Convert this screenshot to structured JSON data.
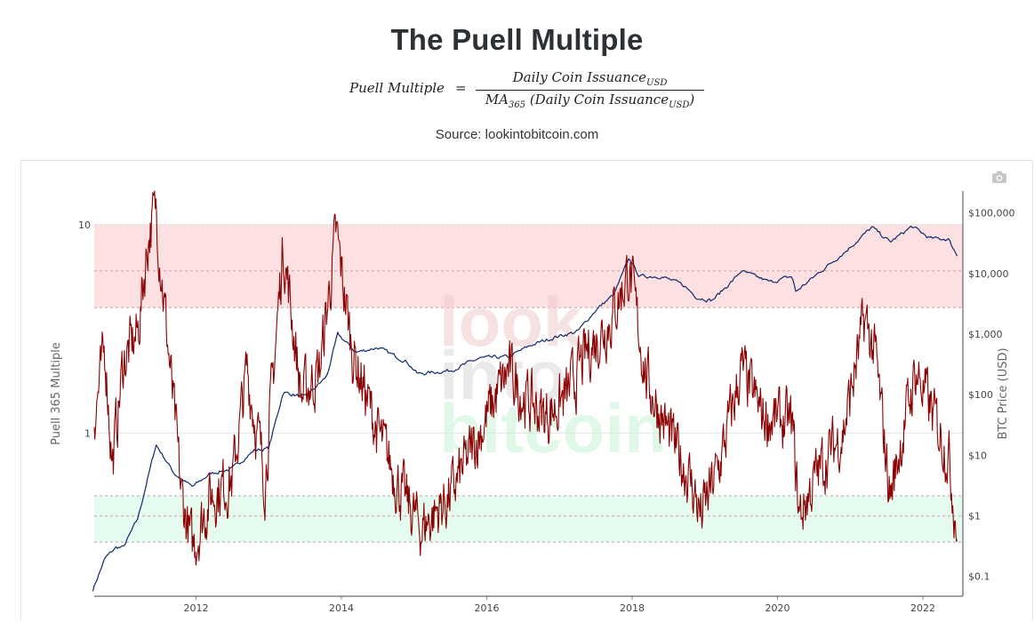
{
  "page": {
    "title": "The Puell Multiple",
    "formula": {
      "lhs": "Puell Multiple",
      "equals": "=",
      "numerator": "Daily Coin Issuance",
      "numerator_sub": "USD",
      "denominator_prefix": "MA",
      "denominator_prefix_sub": "365",
      "denominator_body": "(Daily Coin Issuance",
      "denominator_sub": "USD",
      "denominator_close": ")"
    },
    "source": "Source: lookintobitcoin.com",
    "watermark": [
      "look",
      "into",
      "bitcoin"
    ],
    "camera_icon": "camera-icon"
  },
  "chart_data": {
    "type": "line",
    "x_ticks": [
      "2012",
      "2014",
      "2016",
      "2018",
      "2020",
      "2022"
    ],
    "xlim": [
      2010.6,
      2022.55
    ],
    "left_axis": {
      "title": "Puell 365 Multiple",
      "scale": "log",
      "ticks": [
        "1",
        "10"
      ],
      "ylim": [
        0.165,
        14.5
      ]
    },
    "right_axis": {
      "title": "BTC Price (USD)",
      "scale": "log",
      "ticks": [
        "$0.1",
        "$1",
        "$10",
        "$100",
        "$1,000",
        "$10,000",
        "$100,000"
      ],
      "ylim": [
        0.047,
        230000
      ]
    },
    "bands": [
      {
        "name": "overvalued",
        "color": "#fde0e2",
        "range": [
          4,
          10
        ],
        "lines": [
          4,
          6,
          10
        ]
      },
      {
        "name": "undervalued",
        "color": "#e6fbf0",
        "range": [
          0.3,
          0.5
        ],
        "lines": [
          0.3,
          0.4,
          0.5
        ]
      }
    ],
    "series": [
      {
        "name": "BTC Price",
        "axis": "right",
        "color": "#0e2a6b",
        "x": [
          2010.58,
          2010.75,
          2010.9,
          2011.0,
          2011.2,
          2011.45,
          2011.7,
          2011.95,
          2012.2,
          2012.5,
          2012.8,
          2013.0,
          2013.2,
          2013.5,
          2013.8,
          2013.95,
          2014.2,
          2014.5,
          2014.9,
          2015.05,
          2015.5,
          2015.9,
          2016.3,
          2016.6,
          2016.95,
          2017.25,
          2017.5,
          2017.75,
          2017.96,
          2018.1,
          2018.4,
          2018.7,
          2018.9,
          2019.1,
          2019.4,
          2019.5,
          2019.9,
          2020.2,
          2020.25,
          2020.6,
          2020.95,
          2021.3,
          2021.55,
          2021.85,
          2022.1,
          2022.35,
          2022.47
        ],
        "y": [
          0.06,
          0.2,
          0.3,
          0.3,
          0.9,
          15,
          5,
          3,
          5,
          6,
          12,
          13,
          110,
          90,
          200,
          1000,
          500,
          600,
          350,
          220,
          250,
          400,
          420,
          650,
          900,
          1100,
          2500,
          4500,
          18000,
          9000,
          9000,
          6500,
          4000,
          3600,
          8000,
          11000,
          7200,
          9000,
          5000,
          11000,
          24000,
          58000,
          33000,
          60000,
          38000,
          37000,
          20000
        ]
      },
      {
        "name": "Puell Multiple",
        "axis": "left",
        "color": "#8b0000",
        "x": [
          2010.6,
          2010.75,
          2010.85,
          2011.0,
          2011.2,
          2011.35,
          2011.45,
          2011.6,
          2011.8,
          2011.95,
          2012.2,
          2012.5,
          2012.7,
          2012.95,
          2013.2,
          2013.45,
          2013.7,
          2013.93,
          2014.15,
          2014.5,
          2014.85,
          2015.1,
          2015.5,
          2015.9,
          2016.3,
          2016.5,
          2016.8,
          2017.1,
          2017.4,
          2017.7,
          2017.96,
          2018.2,
          2018.5,
          2018.8,
          2018.95,
          2019.2,
          2019.5,
          2019.8,
          2020.2,
          2020.3,
          2020.6,
          2020.9,
          2021.2,
          2021.35,
          2021.55,
          2021.9,
          2022.15,
          2022.35,
          2022.47
        ],
        "y": [
          1.2,
          2.5,
          0.7,
          2.2,
          3.0,
          9.0,
          12.0,
          3.0,
          0.5,
          0.28,
          0.5,
          0.6,
          2.0,
          0.6,
          8.0,
          1.5,
          2.0,
          9.0,
          2.5,
          1.0,
          0.5,
          0.35,
          0.5,
          1.0,
          2.0,
          1.5,
          1.2,
          1.5,
          2.5,
          3.5,
          6.0,
          1.8,
          1.0,
          0.6,
          0.4,
          0.7,
          2.0,
          1.2,
          1.1,
          0.4,
          0.7,
          1.0,
          3.5,
          2.3,
          0.5,
          2.0,
          1.2,
          0.8,
          0.35
        ]
      }
    ]
  }
}
